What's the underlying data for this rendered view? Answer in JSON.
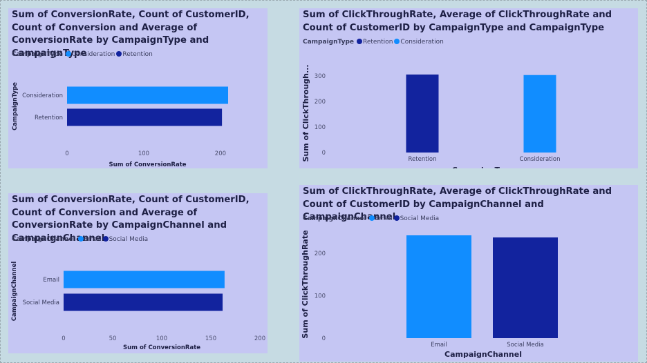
{
  "chart_data": [
    {
      "type": "bar",
      "orientation": "horizontal",
      "title": "Sum of ConversionRate, Count of CustomerID, Count of Conversion and Average of ConversionRate by CampaignType and CampaignType",
      "legend_title": "CampaignType",
      "legend": [
        {
          "label": "Consideration",
          "color": "#118dff"
        },
        {
          "label": "Retention",
          "color": "#12239e"
        }
      ],
      "categories": [
        "Consideration",
        "Retention"
      ],
      "values": [
        210,
        202
      ],
      "colors": [
        "#118dff",
        "#12239e"
      ],
      "xlabel": "Sum of ConversionRate",
      "ylabel": "CampaignType",
      "xlim": [
        0,
        210
      ],
      "ticks": [
        0,
        100,
        200
      ]
    },
    {
      "type": "bar",
      "orientation": "vertical",
      "title": "Sum of ClickThroughRate, Average of ClickThroughRate and Count of CustomerID by CampaignType and CampaignType",
      "legend_title": "CampaignType",
      "legend": [
        {
          "label": "Retention",
          "color": "#12239e"
        },
        {
          "label": "Consideration",
          "color": "#118dff"
        }
      ],
      "categories": [
        "Retention",
        "Consideration"
      ],
      "values": [
        305,
        303
      ],
      "colors": [
        "#12239e",
        "#118dff"
      ],
      "xlabel": "CampaignType",
      "ylabel": "Sum of ClickThrough...",
      "ylim": [
        0,
        305
      ],
      "ticks": [
        0,
        100,
        200,
        300
      ]
    },
    {
      "type": "bar",
      "orientation": "horizontal",
      "title": "Sum of ConversionRate, Count of CustomerID, Count of Conversion and Average of ConversionRate by CampaignChannel and CampaignChannel",
      "legend_title": "CampaignChannel",
      "legend": [
        {
          "label": "Email",
          "color": "#118dff"
        },
        {
          "label": "Social Media",
          "color": "#12239e"
        }
      ],
      "categories": [
        "Email",
        "Social Media"
      ],
      "values": [
        164,
        162
      ],
      "colors": [
        "#118dff",
        "#12239e"
      ],
      "xlabel": "Sum of ConversionRate",
      "ylabel": "CampaignChannel",
      "xlim": [
        0,
        200
      ],
      "ticks": [
        0,
        50,
        100,
        150,
        200
      ]
    },
    {
      "type": "bar",
      "orientation": "vertical",
      "title": "Sum of ClickThroughRate, Average of ClickThroughRate and Count of CustomerID by CampaignChannel and CampaignChannel",
      "legend_title": "CampaignChannel",
      "legend": [
        {
          "label": "Email",
          "color": "#118dff"
        },
        {
          "label": "Social Media",
          "color": "#12239e"
        }
      ],
      "categories": [
        "Email",
        "Social Media"
      ],
      "values": [
        242,
        237
      ],
      "colors": [
        "#118dff",
        "#12239e"
      ],
      "xlabel": "CampaignChannel",
      "ylabel": "Sum of ClickThroughRate",
      "ylim": [
        0,
        242
      ],
      "ticks": [
        0,
        100,
        200
      ]
    }
  ]
}
